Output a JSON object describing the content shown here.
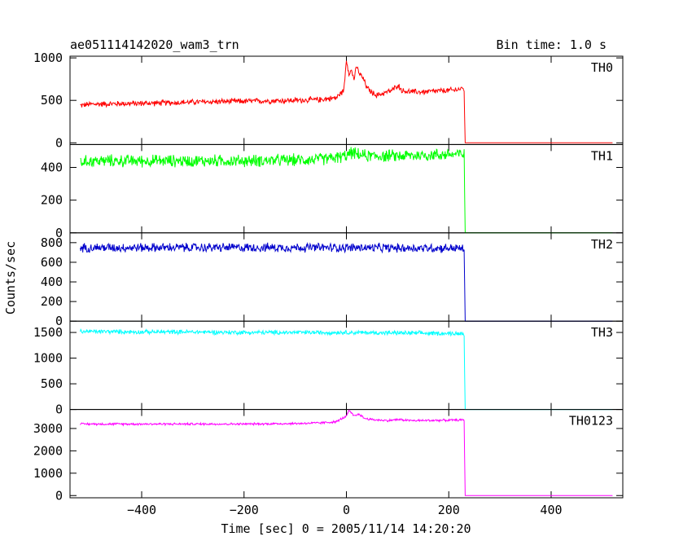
{
  "chart_data": {
    "type": "line",
    "title": "ae051114142020_wam3_trn",
    "subtitle": "Bin time: 1.0 s",
    "xlabel": "Time [sec] 0 = 2005/11/14 14:20:20",
    "ylabel": "Counts/sec",
    "xlim": [
      -540,
      540
    ],
    "x_ticks": [
      -400,
      -200,
      0,
      200,
      400
    ],
    "x_tick_labels": [
      "−400",
      "−200",
      "0",
      "200",
      "400"
    ],
    "grid": false,
    "panels": [
      {
        "name": "TH0",
        "color": "#ff0000",
        "ylim": [
          -20,
          1020
        ],
        "y_ticks": [
          0,
          500,
          1000
        ],
        "y_tick_labels": [
          "0",
          "500",
          "1000"
        ],
        "x": [
          -520,
          -500,
          -450,
          -400,
          -350,
          -300,
          -250,
          -200,
          -150,
          -100,
          -50,
          -20,
          -5,
          0,
          5,
          10,
          15,
          20,
          25,
          30,
          35,
          40,
          50,
          60,
          70,
          80,
          90,
          100,
          110,
          130,
          150,
          180,
          210,
          225,
          230,
          232,
          240,
          300,
          400,
          520
        ],
        "values": [
          440,
          455,
          460,
          465,
          470,
          480,
          485,
          490,
          495,
          500,
          510,
          530,
          620,
          980,
          820,
          850,
          750,
          900,
          820,
          780,
          730,
          650,
          590,
          560,
          580,
          600,
          620,
          680,
          610,
          600,
          600,
          610,
          620,
          640,
          630,
          0,
          0,
          0,
          0,
          0
        ],
        "noise": 40
      },
      {
        "name": "TH1",
        "color": "#00ff00",
        "ylim": [
          0,
          540
        ],
        "y_ticks": [
          0,
          200,
          400
        ],
        "y_tick_labels": [
          "0",
          "200",
          "400"
        ],
        "x": [
          -520,
          -500,
          -400,
          -300,
          -200,
          -100,
          -50,
          -20,
          0,
          10,
          20,
          40,
          100,
          200,
          225,
          230,
          232,
          240,
          300,
          400,
          520
        ],
        "values": [
          430,
          440,
          440,
          440,
          440,
          445,
          450,
          460,
          470,
          490,
          480,
          470,
          470,
          480,
          480,
          475,
          0,
          0,
          0,
          0,
          0
        ],
        "noise": 45
      },
      {
        "name": "TH2",
        "color": "#0000cc",
        "ylim": [
          0,
          900
        ],
        "y_ticks": [
          0,
          200,
          400,
          600,
          800
        ],
        "y_tick_labels": [
          "0",
          "200",
          "400",
          "600",
          "800"
        ],
        "x": [
          -520,
          -500,
          -400,
          -300,
          -200,
          -100,
          0,
          100,
          200,
          225,
          230,
          232,
          240,
          300,
          400,
          520
        ],
        "values": [
          750,
          750,
          750,
          750,
          750,
          750,
          750,
          745,
          745,
          740,
          740,
          0,
          0,
          0,
          0,
          0
        ],
        "noise": 55
      },
      {
        "name": "TH3",
        "color": "#00ffff",
        "ylim": [
          0,
          1720
        ],
        "y_ticks": [
          0,
          500,
          1000,
          1500
        ],
        "y_tick_labels": [
          "0",
          "500",
          "1000",
          "1500"
        ],
        "x": [
          -520,
          -500,
          -400,
          -300,
          -200,
          -100,
          0,
          100,
          200,
          225,
          230,
          232,
          240,
          300,
          400,
          520
        ],
        "values": [
          1520,
          1520,
          1510,
          1510,
          1500,
          1500,
          1500,
          1490,
          1480,
          1480,
          1480,
          0,
          0,
          0,
          0,
          0
        ],
        "noise": 50
      },
      {
        "name": "TH0123",
        "color": "#ff00ff",
        "ylim": [
          -100,
          3850
        ],
        "y_ticks": [
          0,
          1000,
          2000,
          3000
        ],
        "y_tick_labels": [
          "0",
          "1000",
          "2000",
          "3000"
        ],
        "x": [
          -520,
          -500,
          -400,
          -300,
          -200,
          -100,
          -50,
          -20,
          0,
          5,
          15,
          25,
          35,
          50,
          80,
          100,
          130,
          200,
          225,
          230,
          232,
          240,
          300,
          400,
          520
        ],
        "values": [
          3200,
          3200,
          3200,
          3200,
          3200,
          3220,
          3250,
          3300,
          3550,
          3800,
          3550,
          3650,
          3450,
          3400,
          3350,
          3400,
          3350,
          3370,
          3380,
          3380,
          0,
          0,
          0,
          0,
          0
        ],
        "noise": 60
      }
    ]
  }
}
